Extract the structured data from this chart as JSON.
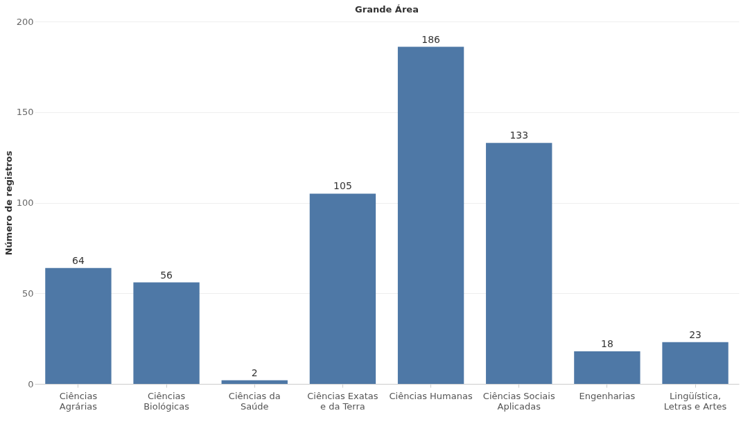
{
  "chart_data": {
    "type": "bar",
    "title": "Grande Área",
    "ylabel": "Número de registros",
    "categories": [
      "Ciências Agrárias",
      "Ciências Biológicas",
      "Ciências da Saúde",
      "Ciências Exatas e da Terra",
      "Ciências Humanas",
      "Ciências Sociais Aplicadas",
      "Engenharias",
      "Lingüística, Letras e Artes"
    ],
    "values": [
      64,
      56,
      2,
      105,
      186,
      133,
      18,
      23
    ],
    "color": "#4e78a6",
    "ylim": [
      0,
      200
    ],
    "yticks": [
      0,
      50,
      100,
      150,
      200
    ],
    "grid": "y",
    "data_labels": true
  }
}
